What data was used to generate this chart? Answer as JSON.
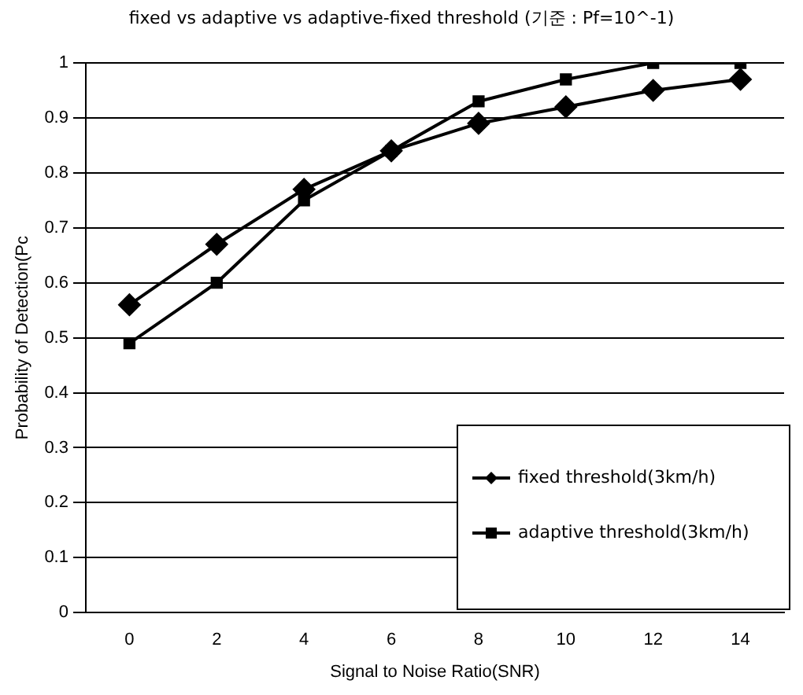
{
  "chart_data": {
    "type": "line",
    "title": "fixed vs adaptive vs adaptive-fixed threshold (기준 : Pf=10^-1)",
    "xlabel": "Signal to Noise Ratio(SNR)",
    "ylabel": "Probability of Detection(Pc",
    "categories": [
      "0",
      "2",
      "4",
      "6",
      "8",
      "10",
      "12",
      "14"
    ],
    "series": [
      {
        "name": "fixed threshold(3km/h)",
        "color": "#000000",
        "marker": "diamond",
        "values": [
          0.56,
          0.67,
          0.77,
          0.84,
          0.89,
          0.92,
          0.95,
          0.97
        ]
      },
      {
        "name": "adaptive threshold(3km/h)",
        "color": "#000000",
        "marker": "square",
        "values": [
          0.49,
          0.6,
          0.75,
          0.84,
          0.93,
          0.97,
          1.0,
          1.0
        ]
      }
    ],
    "ylim": [
      0,
      1
    ],
    "yticks": [
      0,
      0.1,
      0.2,
      0.3,
      0.4,
      0.5,
      0.6,
      0.7,
      0.8,
      0.9,
      1
    ],
    "grid": "y",
    "legend": "bottom right",
    "line_style": "solid"
  }
}
